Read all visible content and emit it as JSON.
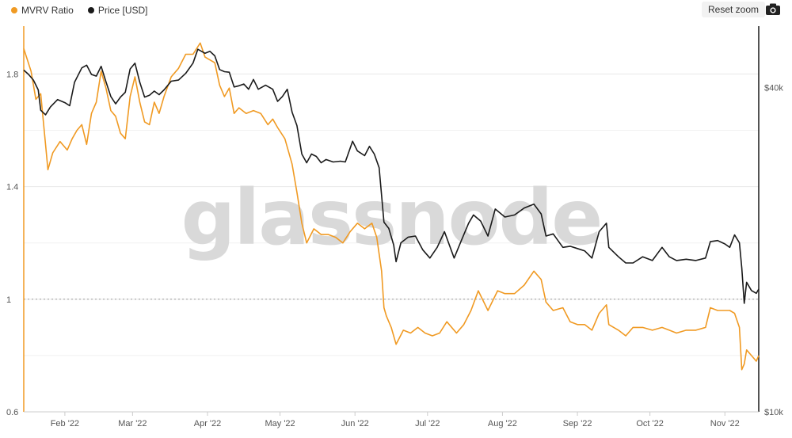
{
  "legend": {
    "mvrv_label": "MVRV Ratio",
    "price_label": "Price [USD]"
  },
  "toolbar": {
    "reset_zoom_label": "Reset zoom",
    "camera_icon": "camera-icon"
  },
  "watermark": "glassnode",
  "colors": {
    "mvrv": "#f09a23",
    "price": "#1a1a1a",
    "left_axis": "#f09a23",
    "right_axis": "#1a1a1a",
    "grid": "#e8e8e8",
    "reference": "#999999"
  },
  "chart_data": {
    "type": "line",
    "x_ticks": [
      "Feb '22",
      "Mar '22",
      "Apr '22",
      "May '22",
      "Jun '22",
      "Jul '22",
      "Aug '22",
      "Sep '22",
      "Oct '22",
      "Nov '22"
    ],
    "x_range": [
      "2022-01-15",
      "2022-11-15"
    ],
    "y_left": {
      "ticks": [
        "0.6",
        "1",
        "1.4",
        "1.8"
      ],
      "tick_values": [
        0.6,
        1.0,
        1.4,
        1.8
      ],
      "range": [
        0.6,
        1.97
      ]
    },
    "y_right": {
      "ticks": [
        "$10k",
        "$40k"
      ],
      "tick_values": [
        10000,
        40000
      ],
      "scale": "log",
      "range": [
        10000,
        52000
      ]
    },
    "reference_line": {
      "axis": "left",
      "value": 1.0,
      "style": "dotted"
    },
    "grid": true,
    "legend_position": "top-left",
    "series": [
      {
        "name": "MVRV Ratio",
        "axis": "left",
        "points": [
          [
            "2022-01-15",
            1.89
          ],
          [
            "2022-01-18",
            1.81
          ],
          [
            "2022-01-20",
            1.71
          ],
          [
            "2022-01-22",
            1.73
          ],
          [
            "2022-01-24",
            1.55
          ],
          [
            "2022-01-25",
            1.46
          ],
          [
            "2022-01-27",
            1.52
          ],
          [
            "2022-01-30",
            1.56
          ],
          [
            "2022-02-02",
            1.53
          ],
          [
            "2022-02-04",
            1.57
          ],
          [
            "2022-02-06",
            1.6
          ],
          [
            "2022-02-08",
            1.62
          ],
          [
            "2022-02-10",
            1.55
          ],
          [
            "2022-02-12",
            1.66
          ],
          [
            "2022-02-14",
            1.7
          ],
          [
            "2022-02-16",
            1.81
          ],
          [
            "2022-02-18",
            1.75
          ],
          [
            "2022-02-20",
            1.67
          ],
          [
            "2022-02-22",
            1.65
          ],
          [
            "2022-02-24",
            1.59
          ],
          [
            "2022-02-26",
            1.57
          ],
          [
            "2022-02-28",
            1.72
          ],
          [
            "2022-03-02",
            1.79
          ],
          [
            "2022-03-04",
            1.7
          ],
          [
            "2022-03-06",
            1.63
          ],
          [
            "2022-03-08",
            1.62
          ],
          [
            "2022-03-10",
            1.7
          ],
          [
            "2022-03-12",
            1.66
          ],
          [
            "2022-03-14",
            1.72
          ],
          [
            "2022-03-17",
            1.79
          ],
          [
            "2022-03-20",
            1.82
          ],
          [
            "2022-03-23",
            1.87
          ],
          [
            "2022-03-26",
            1.87
          ],
          [
            "2022-03-29",
            1.91
          ],
          [
            "2022-03-31",
            1.86
          ],
          [
            "2022-04-02",
            1.85
          ],
          [
            "2022-04-04",
            1.84
          ],
          [
            "2022-04-06",
            1.76
          ],
          [
            "2022-04-08",
            1.72
          ],
          [
            "2022-04-10",
            1.75
          ],
          [
            "2022-04-12",
            1.66
          ],
          [
            "2022-04-14",
            1.68
          ],
          [
            "2022-04-17",
            1.66
          ],
          [
            "2022-04-20",
            1.67
          ],
          [
            "2022-04-23",
            1.66
          ],
          [
            "2022-04-26",
            1.62
          ],
          [
            "2022-04-28",
            1.64
          ],
          [
            "2022-04-30",
            1.61
          ],
          [
            "2022-05-03",
            1.57
          ],
          [
            "2022-05-06",
            1.48
          ],
          [
            "2022-05-08",
            1.38
          ],
          [
            "2022-05-10",
            1.27
          ],
          [
            "2022-05-12",
            1.2
          ],
          [
            "2022-05-15",
            1.25
          ],
          [
            "2022-05-18",
            1.23
          ],
          [
            "2022-05-21",
            1.23
          ],
          [
            "2022-05-24",
            1.22
          ],
          [
            "2022-05-27",
            1.2
          ],
          [
            "2022-05-30",
            1.24
          ],
          [
            "2022-06-02",
            1.27
          ],
          [
            "2022-06-05",
            1.25
          ],
          [
            "2022-06-08",
            1.27
          ],
          [
            "2022-06-10",
            1.22
          ],
          [
            "2022-06-12",
            1.1
          ],
          [
            "2022-06-13",
            0.97
          ],
          [
            "2022-06-14",
            0.94
          ],
          [
            "2022-06-16",
            0.9
          ],
          [
            "2022-06-18",
            0.84
          ],
          [
            "2022-06-21",
            0.89
          ],
          [
            "2022-06-24",
            0.88
          ],
          [
            "2022-06-27",
            0.9
          ],
          [
            "2022-06-30",
            0.88
          ],
          [
            "2022-07-03",
            0.87
          ],
          [
            "2022-07-06",
            0.88
          ],
          [
            "2022-07-09",
            0.92
          ],
          [
            "2022-07-13",
            0.88
          ],
          [
            "2022-07-16",
            0.91
          ],
          [
            "2022-07-19",
            0.96
          ],
          [
            "2022-07-22",
            1.03
          ],
          [
            "2022-07-26",
            0.96
          ],
          [
            "2022-07-30",
            1.03
          ],
          [
            "2022-08-02",
            1.02
          ],
          [
            "2022-08-06",
            1.02
          ],
          [
            "2022-08-10",
            1.05
          ],
          [
            "2022-08-14",
            1.1
          ],
          [
            "2022-08-17",
            1.07
          ],
          [
            "2022-08-19",
            0.99
          ],
          [
            "2022-08-22",
            0.96
          ],
          [
            "2022-08-26",
            0.97
          ],
          [
            "2022-08-29",
            0.92
          ],
          [
            "2022-09-01",
            0.91
          ],
          [
            "2022-09-04",
            0.91
          ],
          [
            "2022-09-07",
            0.89
          ],
          [
            "2022-09-10",
            0.95
          ],
          [
            "2022-09-13",
            0.98
          ],
          [
            "2022-09-14",
            0.91
          ],
          [
            "2022-09-18",
            0.89
          ],
          [
            "2022-09-21",
            0.87
          ],
          [
            "2022-09-24",
            0.9
          ],
          [
            "2022-09-28",
            0.9
          ],
          [
            "2022-10-02",
            0.89
          ],
          [
            "2022-10-06",
            0.9
          ],
          [
            "2022-10-09",
            0.89
          ],
          [
            "2022-10-12",
            0.88
          ],
          [
            "2022-10-16",
            0.89
          ],
          [
            "2022-10-20",
            0.89
          ],
          [
            "2022-10-24",
            0.9
          ],
          [
            "2022-10-26",
            0.97
          ],
          [
            "2022-10-29",
            0.96
          ],
          [
            "2022-11-01",
            0.96
          ],
          [
            "2022-11-03",
            0.96
          ],
          [
            "2022-11-05",
            0.95
          ],
          [
            "2022-11-07",
            0.9
          ],
          [
            "2022-11-08",
            0.75
          ],
          [
            "2022-11-09",
            0.77
          ],
          [
            "2022-11-10",
            0.82
          ],
          [
            "2022-11-12",
            0.8
          ],
          [
            "2022-11-14",
            0.78
          ],
          [
            "2022-11-15",
            0.8
          ]
        ]
      },
      {
        "name": "Price [USD]",
        "axis": "right",
        "points": [
          [
            "2022-01-15",
            43100
          ],
          [
            "2022-01-17",
            42300
          ],
          [
            "2022-01-19",
            41300
          ],
          [
            "2022-01-21",
            39600
          ],
          [
            "2022-01-22",
            36300
          ],
          [
            "2022-01-24",
            35600
          ],
          [
            "2022-01-26",
            36800
          ],
          [
            "2022-01-29",
            38000
          ],
          [
            "2022-02-01",
            37500
          ],
          [
            "2022-02-03",
            37000
          ],
          [
            "2022-02-05",
            40900
          ],
          [
            "2022-02-08",
            43500
          ],
          [
            "2022-02-10",
            44000
          ],
          [
            "2022-02-12",
            42300
          ],
          [
            "2022-02-14",
            42000
          ],
          [
            "2022-02-16",
            43800
          ],
          [
            "2022-02-18",
            41000
          ],
          [
            "2022-02-20",
            38500
          ],
          [
            "2022-02-22",
            37300
          ],
          [
            "2022-02-24",
            38400
          ],
          [
            "2022-02-26",
            39200
          ],
          [
            "2022-02-28",
            43300
          ],
          [
            "2022-03-02",
            44400
          ],
          [
            "2022-03-04",
            40900
          ],
          [
            "2022-03-06",
            38400
          ],
          [
            "2022-03-08",
            38700
          ],
          [
            "2022-03-10",
            39400
          ],
          [
            "2022-03-12",
            38800
          ],
          [
            "2022-03-14",
            39600
          ],
          [
            "2022-03-17",
            41100
          ],
          [
            "2022-03-20",
            41300
          ],
          [
            "2022-03-23",
            42500
          ],
          [
            "2022-03-26",
            44400
          ],
          [
            "2022-03-28",
            47100
          ],
          [
            "2022-03-31",
            46300
          ],
          [
            "2022-04-02",
            46700
          ],
          [
            "2022-04-04",
            45800
          ],
          [
            "2022-04-06",
            43200
          ],
          [
            "2022-04-08",
            42800
          ],
          [
            "2022-04-10",
            42700
          ],
          [
            "2022-04-12",
            40100
          ],
          [
            "2022-04-14",
            40300
          ],
          [
            "2022-04-16",
            40600
          ],
          [
            "2022-04-18",
            39700
          ],
          [
            "2022-04-20",
            41400
          ],
          [
            "2022-04-22",
            39700
          ],
          [
            "2022-04-25",
            40400
          ],
          [
            "2022-04-28",
            39700
          ],
          [
            "2022-04-30",
            37700
          ],
          [
            "2022-05-02",
            38500
          ],
          [
            "2022-05-04",
            39700
          ],
          [
            "2022-05-06",
            36000
          ],
          [
            "2022-05-08",
            34000
          ],
          [
            "2022-05-10",
            30100
          ],
          [
            "2022-05-12",
            29000
          ],
          [
            "2022-05-14",
            30100
          ],
          [
            "2022-05-16",
            29800
          ],
          [
            "2022-05-18",
            29000
          ],
          [
            "2022-05-20",
            29400
          ],
          [
            "2022-05-23",
            29100
          ],
          [
            "2022-05-26",
            29200
          ],
          [
            "2022-05-28",
            29100
          ],
          [
            "2022-05-31",
            31800
          ],
          [
            "2022-06-02",
            30500
          ],
          [
            "2022-06-05",
            29900
          ],
          [
            "2022-06-07",
            31100
          ],
          [
            "2022-06-09",
            30100
          ],
          [
            "2022-06-11",
            28400
          ],
          [
            "2022-06-13",
            22500
          ],
          [
            "2022-06-15",
            21900
          ],
          [
            "2022-06-17",
            20400
          ],
          [
            "2022-06-18",
            19000
          ],
          [
            "2022-06-20",
            20600
          ],
          [
            "2022-06-23",
            21100
          ],
          [
            "2022-06-26",
            21200
          ],
          [
            "2022-06-29",
            20000
          ],
          [
            "2022-07-02",
            19300
          ],
          [
            "2022-07-05",
            20200
          ],
          [
            "2022-07-08",
            21600
          ],
          [
            "2022-07-12",
            19300
          ],
          [
            "2022-07-15",
            20800
          ],
          [
            "2022-07-18",
            22400
          ],
          [
            "2022-07-20",
            23200
          ],
          [
            "2022-07-23",
            22600
          ],
          [
            "2022-07-26",
            21200
          ],
          [
            "2022-07-29",
            23800
          ],
          [
            "2022-08-02",
            23000
          ],
          [
            "2022-08-06",
            23200
          ],
          [
            "2022-08-10",
            23900
          ],
          [
            "2022-08-14",
            24300
          ],
          [
            "2022-08-17",
            23300
          ],
          [
            "2022-08-19",
            21200
          ],
          [
            "2022-08-22",
            21400
          ],
          [
            "2022-08-26",
            20200
          ],
          [
            "2022-08-29",
            20300
          ],
          [
            "2022-09-01",
            20100
          ],
          [
            "2022-09-04",
            19900
          ],
          [
            "2022-09-07",
            19300
          ],
          [
            "2022-09-10",
            21600
          ],
          [
            "2022-09-13",
            22400
          ],
          [
            "2022-09-14",
            20200
          ],
          [
            "2022-09-18",
            19400
          ],
          [
            "2022-09-21",
            18900
          ],
          [
            "2022-09-24",
            18900
          ],
          [
            "2022-09-28",
            19400
          ],
          [
            "2022-10-02",
            19100
          ],
          [
            "2022-10-06",
            20200
          ],
          [
            "2022-10-09",
            19400
          ],
          [
            "2022-10-12",
            19100
          ],
          [
            "2022-10-16",
            19200
          ],
          [
            "2022-10-20",
            19100
          ],
          [
            "2022-10-24",
            19300
          ],
          [
            "2022-10-26",
            20700
          ],
          [
            "2022-10-29",
            20800
          ],
          [
            "2022-11-01",
            20500
          ],
          [
            "2022-11-03",
            20200
          ],
          [
            "2022-11-05",
            21300
          ],
          [
            "2022-11-07",
            20600
          ],
          [
            "2022-11-08",
            18500
          ],
          [
            "2022-11-09",
            15900
          ],
          [
            "2022-11-10",
            17400
          ],
          [
            "2022-11-12",
            16800
          ],
          [
            "2022-11-14",
            16600
          ],
          [
            "2022-11-15",
            16900
          ]
        ]
      }
    ]
  }
}
